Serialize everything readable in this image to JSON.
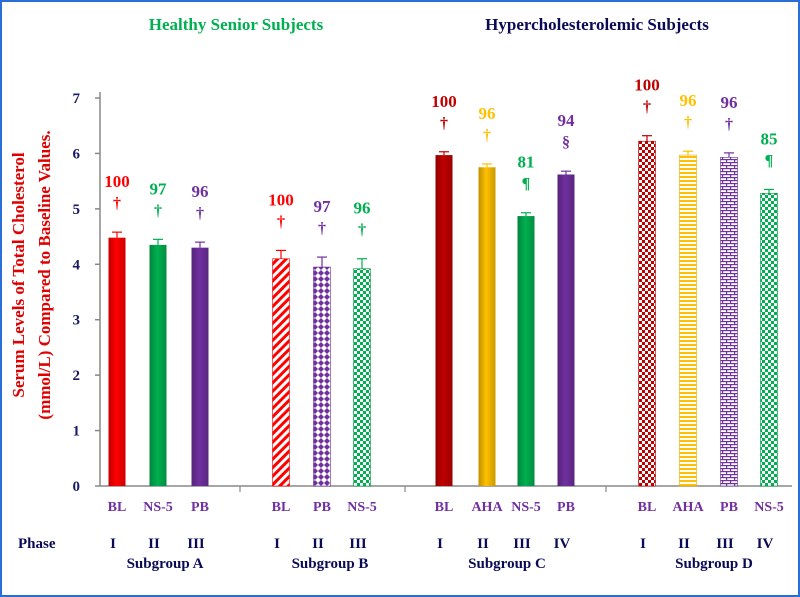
{
  "chart_data": {
    "type": "bar",
    "ylabel_line1": "Serum Levels of  Total Cholesterol",
    "ylabel_line2": "(mmol/L) Compared to  Baseline Values.",
    "yticks": [
      "0",
      "1",
      "2",
      "3",
      "4",
      "5",
      "6",
      "7"
    ],
    "ylim": [
      0,
      7
    ],
    "grid": false,
    "headers": [
      {
        "text": "Healthy  Senior  Subjects",
        "color": "#00b050"
      },
      {
        "text": "Hypercholesterolemic Subjects",
        "color": "#0a0a55"
      }
    ],
    "phase_label": "Phase",
    "groups": [
      {
        "name": "Subgroup  A",
        "bars": [
          {
            "cat": "BL",
            "phase": "I",
            "value": 4.48,
            "err": 0.1,
            "pct": "100",
            "sym": "†",
            "color": "#ff0000",
            "pattern": "solid"
          },
          {
            "cat": "NS-5",
            "phase": "II",
            "value": 4.35,
            "err": 0.1,
            "pct": "97",
            "sym": "†",
            "color": "#00b050",
            "pattern": "solid"
          },
          {
            "cat": "PB",
            "phase": "III",
            "value": 4.3,
            "err": 0.1,
            "pct": "96",
            "sym": "†",
            "color": "#7030a0",
            "pattern": "solid"
          }
        ]
      },
      {
        "name": "Subgroup  B",
        "bars": [
          {
            "cat": "BL",
            "phase": "I",
            "value": 4.1,
            "err": 0.15,
            "pct": "100",
            "sym": "†",
            "color": "#ff0000",
            "pattern": "diag"
          },
          {
            "cat": "PB",
            "phase": "II",
            "value": 3.95,
            "err": 0.18,
            "pct": "97",
            "sym": "†",
            "color": "#7030a0",
            "pattern": "diamond"
          },
          {
            "cat": "NS-5",
            "phase": "III",
            "value": 3.92,
            "err": 0.18,
            "pct": "96",
            "sym": "†",
            "color": "#00b050",
            "pattern": "checker"
          }
        ]
      },
      {
        "name": "Subgroup  C",
        "bars": [
          {
            "cat": "BL",
            "phase": "I",
            "value": 5.97,
            "err": 0.06,
            "pct": "100",
            "sym": "†",
            "color": "#c00000",
            "pattern": "solid"
          },
          {
            "cat": "AHA",
            "phase": "II",
            "value": 5.75,
            "err": 0.06,
            "pct": "96",
            "sym": "†",
            "color": "#ffc000",
            "pattern": "solid"
          },
          {
            "cat": "NS-5",
            "phase": "III",
            "value": 4.87,
            "err": 0.06,
            "pct": "81",
            "sym": "¶",
            "color": "#00b050",
            "pattern": "solid"
          },
          {
            "cat": "PB",
            "phase": "IV",
            "value": 5.62,
            "err": 0.06,
            "pct": "94",
            "sym": "§",
            "color": "#7030a0",
            "pattern": "solid"
          }
        ]
      },
      {
        "name": "Subgroup  D",
        "bars": [
          {
            "cat": "BL",
            "phase": "I",
            "value": 6.22,
            "err": 0.1,
            "pct": "100",
            "sym": "†",
            "color": "#c00000",
            "pattern": "checker"
          },
          {
            "cat": "AHA",
            "phase": "II",
            "value": 5.97,
            "err": 0.07,
            "pct": "96",
            "sym": "†",
            "color": "#ffc000",
            "pattern": "hlines"
          },
          {
            "cat": "PB",
            "phase": "III",
            "value": 5.93,
            "err": 0.08,
            "pct": "96",
            "sym": "†",
            "color": "#7030a0",
            "pattern": "brick"
          },
          {
            "cat": "NS-5",
            "phase": "IV",
            "value": 5.28,
            "err": 0.07,
            "pct": "85",
            "sym": "¶",
            "color": "#00b050",
            "pattern": "checker"
          }
        ]
      }
    ]
  }
}
